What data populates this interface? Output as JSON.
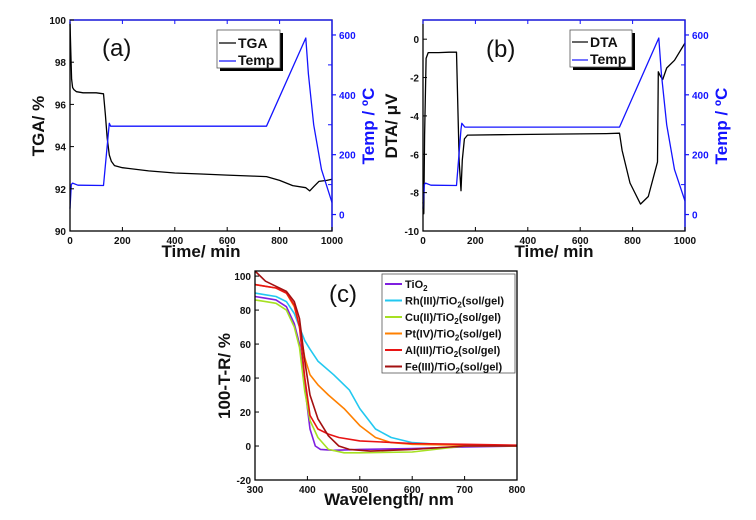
{
  "chart_data": [
    {
      "id": "a",
      "type": "line",
      "panel_label": "(a)",
      "xlabel": "Time/ min",
      "ylabel": "TGA/ %",
      "y2label": "Temp / ºC",
      "xlim": [
        0,
        1000
      ],
      "ylim": [
        90,
        100
      ],
      "y2lim": [
        -55,
        650
      ],
      "xticks": [
        0,
        200,
        400,
        600,
        800,
        1000
      ],
      "yticks": [
        90,
        92,
        94,
        96,
        98,
        100
      ],
      "y2ticks": [
        0,
        200,
        400,
        600
      ],
      "legend_position": "top-right",
      "colors": {
        "TGA": "#000000",
        "Temp": "#1414ff"
      },
      "series": [
        {
          "name": "TGA",
          "axis": "left",
          "x": [
            0,
            3,
            6,
            10,
            15,
            25,
            50,
            100,
            128,
            135,
            142,
            150,
            158,
            170,
            200,
            300,
            400,
            500,
            600,
            700,
            750,
            800,
            850,
            900,
            915,
            930,
            950,
            980,
            1000
          ],
          "y": [
            99.9,
            98.5,
            97.2,
            96.8,
            96.7,
            96.6,
            96.55,
            96.55,
            96.5,
            95.5,
            94.4,
            93.6,
            93.3,
            93.1,
            93.0,
            92.85,
            92.75,
            92.7,
            92.65,
            92.6,
            92.58,
            92.4,
            92.15,
            92.05,
            91.9,
            92.1,
            92.35,
            92.4,
            92.45
          ]
        },
        {
          "name": "Temp",
          "axis": "right",
          "x": [
            0,
            5,
            10,
            30,
            128,
            150,
            155,
            200,
            400,
            600,
            750,
            900,
            910,
            930,
            960,
            1000
          ],
          "y": [
            20,
            100,
            105,
            98,
            97,
            305,
            295,
            295,
            295,
            295,
            295,
            590,
            470,
            300,
            150,
            40
          ]
        }
      ]
    },
    {
      "id": "b",
      "type": "line",
      "panel_label": "(b)",
      "xlabel": "Time/ min",
      "ylabel": "DTA/ μV",
      "y2label": "Temp / ºC",
      "xlim": [
        0,
        1000
      ],
      "ylim": [
        -10,
        1
      ],
      "y2lim": [
        -55,
        650
      ],
      "xticks": [
        0,
        200,
        400,
        600,
        800,
        1000
      ],
      "yticks": [
        -10,
        -8,
        -6,
        -4,
        -2,
        0
      ],
      "y2ticks": [
        0,
        200,
        400,
        600
      ],
      "legend_position": "top-right",
      "colors": {
        "DTA": "#000000",
        "Temp": "#1414ff"
      },
      "series": [
        {
          "name": "DTA",
          "axis": "left",
          "x": [
            0,
            3,
            6,
            12,
            20,
            60,
            100,
            128,
            138,
            145,
            150,
            158,
            170,
            300,
            500,
            700,
            750,
            760,
            790,
            830,
            860,
            895,
            898,
            905,
            915,
            930,
            960,
            1000
          ],
          "y": [
            -8.5,
            -9.1,
            -5,
            -1.0,
            -0.7,
            -0.7,
            -0.68,
            -0.68,
            -6.4,
            -7.9,
            -6.3,
            -5.2,
            -5.0,
            -4.98,
            -4.95,
            -4.92,
            -4.9,
            -5.8,
            -7.5,
            -8.6,
            -8.2,
            -6.4,
            -1.7,
            -1.9,
            -2.1,
            -1.5,
            -1.1,
            -0.2
          ]
        },
        {
          "name": "Temp",
          "axis": "right",
          "x": [
            0,
            5,
            10,
            30,
            128,
            145,
            148,
            160,
            400,
            600,
            750,
            900,
            910,
            930,
            960,
            1000
          ],
          "y": [
            20,
            100,
            105,
            98,
            97,
            285,
            305,
            292,
            292,
            292,
            292,
            590,
            470,
            300,
            150,
            45
          ]
        }
      ]
    },
    {
      "id": "c",
      "type": "line",
      "panel_label": "(c)",
      "xlabel": "Wavelength/ nm",
      "ylabel": "100-T-R/ %",
      "xlim": [
        300,
        800
      ],
      "ylim": [
        -20,
        103
      ],
      "xticks": [
        300,
        400,
        500,
        600,
        700,
        800
      ],
      "yticks": [
        -20,
        0,
        20,
        40,
        60,
        80,
        100
      ],
      "legend_position": "top-right",
      "series": [
        {
          "name": "TiO2",
          "label_main": "TiO",
          "label_sub": "2",
          "label_tail": "",
          "color": "#7f1fe0",
          "x": [
            300,
            320,
            340,
            360,
            375,
            385,
            395,
            405,
            415,
            425,
            450,
            500,
            600,
            700,
            800
          ],
          "y": [
            88,
            87,
            86,
            82,
            72,
            60,
            35,
            10,
            0,
            -2,
            -2.5,
            -2,
            -1.5,
            -0.5,
            0
          ]
        },
        {
          "name": "Rh(III)/TiO2(sol/gel)",
          "label_main": "Rh(III)/TiO",
          "label_sub": "2",
          "label_tail": "(sol/gel)",
          "color": "#22c8f0",
          "x": [
            300,
            320,
            340,
            360,
            375,
            385,
            395,
            405,
            420,
            450,
            480,
            500,
            530,
            560,
            600,
            650,
            700,
            800
          ],
          "y": [
            90,
            89,
            88,
            85,
            78,
            70,
            62,
            57,
            50,
            42,
            33,
            22,
            10,
            5,
            2,
            1,
            0.5,
            0
          ]
        },
        {
          "name": "Cu(II)/TiO2(sol/gel)",
          "label_main": "Cu(II)/TiO",
          "label_sub": "2",
          "label_tail": "(sol/gel)",
          "color": "#a6e022",
          "x": [
            300,
            320,
            340,
            360,
            375,
            385,
            395,
            405,
            420,
            440,
            470,
            500,
            600,
            700,
            800
          ],
          "y": [
            86,
            85,
            84,
            80,
            70,
            58,
            32,
            15,
            5,
            -2,
            -4,
            -4,
            -3.5,
            0,
            0
          ]
        },
        {
          "name": "Pt(IV)/TiO2(sol/gel)",
          "label_main": "Pt(IV)/TiO",
          "label_sub": "2",
          "label_tail": "(sol/gel)",
          "color": "#ff8000",
          "x": [
            300,
            320,
            340,
            360,
            375,
            385,
            395,
            405,
            420,
            440,
            470,
            500,
            530,
            560,
            600,
            700,
            800
          ],
          "y": [
            95,
            94,
            93,
            90,
            82,
            70,
            52,
            42,
            36,
            30,
            22,
            12,
            5,
            2,
            1,
            0.5,
            0
          ]
        },
        {
          "name": "Al(III)/TiO2(sol/gel)",
          "label_main": "Al(III)/TiO",
          "label_sub": "2",
          "label_tail": "(sol/gel)",
          "color": "#e81414",
          "x": [
            300,
            320,
            340,
            360,
            375,
            385,
            395,
            405,
            420,
            440,
            460,
            500,
            600,
            700,
            800
          ],
          "y": [
            95,
            94,
            93,
            90,
            83,
            70,
            40,
            18,
            10,
            7,
            5,
            3,
            1.5,
            1,
            0.5
          ]
        },
        {
          "name": "Fe(III)/TiO2(sol/gel)",
          "label_main": "Fe(III)/TiO",
          "label_sub": "2",
          "label_tail": "(sol/gel)",
          "color": "#a31010",
          "x": [
            300,
            320,
            340,
            360,
            375,
            385,
            395,
            405,
            420,
            440,
            460,
            480,
            520,
            600,
            700,
            800
          ],
          "y": [
            103,
            97,
            94,
            91,
            85,
            75,
            50,
            30,
            16,
            6,
            0,
            -2,
            -3,
            -2,
            0,
            0
          ]
        }
      ]
    }
  ]
}
